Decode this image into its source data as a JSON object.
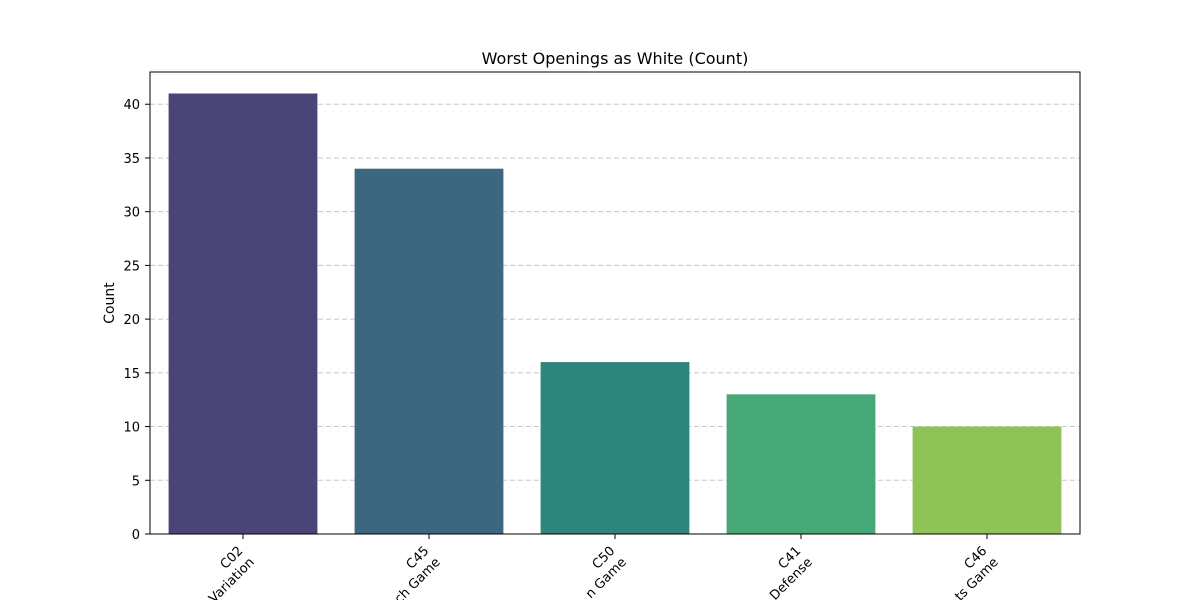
{
  "chart_data": {
    "type": "bar",
    "title": "Worst Openings as White (Count)",
    "xlabel": "",
    "ylabel": "Count",
    "categories": [
      [
        "C02",
        "Variation"
      ],
      [
        "C45",
        "ch Game"
      ],
      [
        "C50",
        "n Game"
      ],
      [
        "C41",
        "Defense"
      ],
      [
        "C46",
        "ts Game"
      ]
    ],
    "values": [
      41,
      34,
      16,
      13,
      10
    ],
    "colors": [
      "#4a4577",
      "#3d6681",
      "#2e857c",
      "#46a877",
      "#8ec457"
    ],
    "ylim": [
      0,
      43
    ],
    "yticks": [
      0,
      5,
      10,
      15,
      20,
      25,
      30,
      35,
      40
    ],
    "grid": "y-dashed",
    "legend": "none"
  }
}
